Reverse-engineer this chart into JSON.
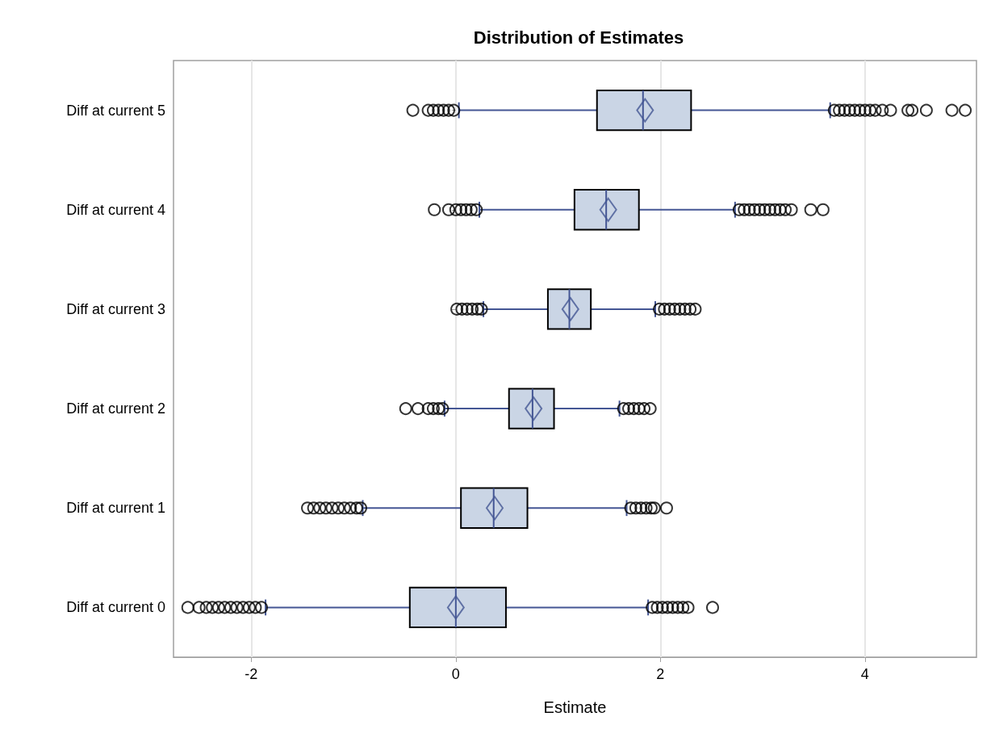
{
  "chart_data": {
    "type": "box",
    "title": "Distribution of Estimates",
    "xlabel": "Estimate",
    "orientation": "horizontal",
    "color": "#cad5e5",
    "marker": "circle",
    "grid": "x",
    "xlim": [
      -2.76,
      5.09
    ],
    "xticks": [
      -2,
      0,
      2,
      4
    ],
    "categories": [
      "Diff at current 5",
      "Diff at current 4",
      "Diff at current 3",
      "Diff at current 2",
      "Diff at current 1",
      "Diff at current 0"
    ],
    "boxes": [
      {
        "low": 0.03,
        "q1": 1.38,
        "median": 1.83,
        "q3": 2.3,
        "high": 3.66,
        "mean": 1.85,
        "outliers": [
          -0.42,
          -0.27,
          -0.22,
          -0.17,
          -0.12,
          -0.07,
          -0.02,
          3.7,
          3.75,
          3.8,
          3.85,
          3.9,
          3.95,
          4.0,
          4.05,
          4.1,
          4.17,
          4.25,
          4.42,
          4.46,
          4.6,
          4.85,
          4.98
        ]
      },
      {
        "low": 0.23,
        "q1": 1.16,
        "median": 1.47,
        "q3": 1.79,
        "high": 2.73,
        "mean": 1.49,
        "outliers": [
          -0.21,
          -0.07,
          0.0,
          0.05,
          0.1,
          0.15,
          0.2,
          2.77,
          2.82,
          2.87,
          2.92,
          2.97,
          3.02,
          3.07,
          3.12,
          3.17,
          3.22,
          3.28,
          3.47,
          3.59
        ]
      },
      {
        "low": 0.27,
        "q1": 0.9,
        "median": 1.11,
        "q3": 1.32,
        "high": 1.95,
        "mean": 1.12,
        "outliers": [
          0.01,
          0.06,
          0.11,
          0.16,
          0.21,
          0.25,
          1.99,
          2.04,
          2.09,
          2.14,
          2.19,
          2.24,
          2.29,
          2.34
        ]
      },
      {
        "low": -0.11,
        "q1": 0.52,
        "median": 0.75,
        "q3": 0.96,
        "high": 1.6,
        "mean": 0.76,
        "outliers": [
          -0.49,
          -0.37,
          -0.27,
          -0.22,
          -0.17,
          -0.13,
          1.64,
          1.69,
          1.74,
          1.79,
          1.84,
          1.9
        ]
      },
      {
        "low": -0.91,
        "q1": 0.05,
        "median": 0.37,
        "q3": 0.7,
        "high": 1.67,
        "mean": 0.38,
        "outliers": [
          -1.45,
          -1.39,
          -1.33,
          -1.27,
          -1.21,
          -1.15,
          -1.09,
          -1.03,
          -0.97,
          -0.93,
          1.71,
          1.76,
          1.81,
          1.86,
          1.91,
          1.94,
          2.06
        ]
      },
      {
        "low": -1.86,
        "q1": -0.45,
        "median": 0.0,
        "q3": 0.49,
        "high": 1.88,
        "mean": 0.0,
        "outliers": [
          -2.62,
          -2.51,
          -2.44,
          -2.38,
          -2.32,
          -2.26,
          -2.2,
          -2.14,
          -2.08,
          -2.02,
          -1.96,
          -1.9,
          1.92,
          1.97,
          2.02,
          2.07,
          2.12,
          2.17,
          2.22,
          2.27,
          2.51
        ]
      }
    ]
  }
}
